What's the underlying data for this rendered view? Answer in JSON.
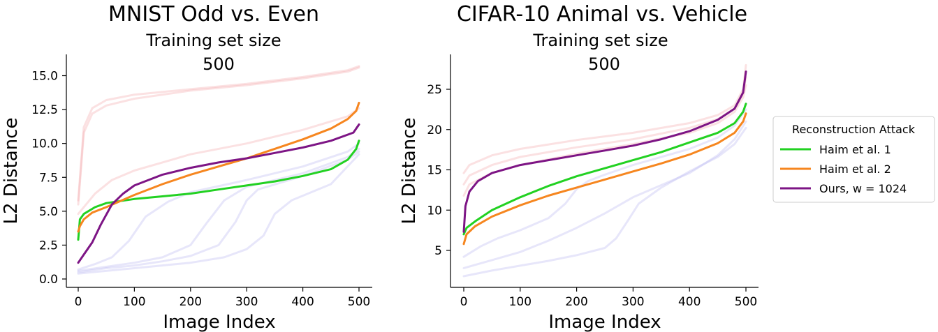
{
  "chart_data": [
    {
      "type": "line",
      "title": "MNIST Odd vs. Even",
      "subtitle": "Training set size",
      "subtitle_value": "500",
      "xlabel": "Image Index",
      "ylabel": "L2 Distance",
      "xlim": [
        0,
        500
      ],
      "ylim": [
        0,
        16
      ],
      "xticks": [
        "0",
        "100",
        "200",
        "300",
        "400",
        "500"
      ],
      "xtick_values": [
        0,
        100,
        200,
        300,
        400,
        500
      ],
      "yticks": [
        "0.0",
        "2.5",
        "5.0",
        "7.5",
        "10.0",
        "12.5",
        "15.0"
      ],
      "ytick_values": [
        0,
        2.5,
        5,
        7.5,
        10,
        12.5,
        15
      ],
      "series": [
        {
          "name": "faded pink 1",
          "color": "#f4a8ac",
          "faded": true,
          "x": [
            0,
            10,
            25,
            50,
            100,
            200,
            300,
            400,
            480,
            500
          ],
          "y": [
            5.5,
            10.8,
            12.2,
            12.8,
            13.3,
            13.9,
            14.3,
            14.8,
            15.3,
            15.6
          ]
        },
        {
          "name": "faded pink 2",
          "color": "#f4a8ac",
          "faded": true,
          "x": [
            0,
            10,
            25,
            50,
            100,
            200,
            300,
            400,
            480,
            500
          ],
          "y": [
            5.8,
            11.2,
            12.6,
            13.2,
            13.6,
            14.0,
            14.4,
            14.9,
            15.4,
            15.7
          ]
        },
        {
          "name": "faded pink 3",
          "color": "#f4a8ac",
          "faded": true,
          "x": [
            0,
            30,
            60,
            100,
            150,
            200,
            300,
            400,
            480,
            500
          ],
          "y": [
            4.8,
            6.3,
            7.3,
            8.0,
            8.6,
            9.2,
            10.0,
            11.0,
            12.0,
            12.6
          ]
        },
        {
          "name": "faded blue 1",
          "color": "#b9b6f2",
          "faded": true,
          "x": [
            0,
            30,
            60,
            90,
            120,
            160,
            200,
            300,
            400,
            480,
            500
          ],
          "y": [
            0.7,
            1.1,
            1.6,
            2.8,
            4.6,
            5.7,
            6.4,
            7.3,
            8.3,
            9.4,
            10.0
          ]
        },
        {
          "name": "faded blue 2",
          "color": "#b9b6f2",
          "faded": true,
          "x": [
            0,
            50,
            100,
            150,
            200,
            230,
            260,
            300,
            400,
            480,
            500
          ],
          "y": [
            0.6,
            0.9,
            1.2,
            1.6,
            2.5,
            4.2,
            5.8,
            6.8,
            7.8,
            9.0,
            9.6
          ]
        },
        {
          "name": "faded blue 3",
          "color": "#b9b6f2",
          "faded": true,
          "x": [
            0,
            50,
            100,
            150,
            200,
            250,
            280,
            300,
            320,
            400,
            480,
            500
          ],
          "y": [
            0.5,
            0.8,
            1.0,
            1.3,
            1.7,
            2.5,
            4.2,
            5.8,
            6.6,
            7.6,
            8.8,
            9.4
          ]
        },
        {
          "name": "faded blue 4",
          "color": "#b9b6f2",
          "faded": true,
          "x": [
            0,
            100,
            200,
            260,
            300,
            330,
            350,
            380,
            450,
            500
          ],
          "y": [
            0.4,
            0.8,
            1.2,
            1.6,
            2.2,
            3.2,
            4.8,
            5.8,
            7.0,
            9.2
          ]
        },
        {
          "name": "Haim et al. 1",
          "color": "#22d122",
          "faded": false,
          "x": [
            0,
            3,
            10,
            30,
            50,
            100,
            150,
            200,
            250,
            300,
            350,
            400,
            450,
            480,
            495,
            500
          ],
          "y": [
            2.9,
            4.4,
            4.8,
            5.3,
            5.6,
            5.9,
            6.1,
            6.3,
            6.6,
            6.9,
            7.2,
            7.6,
            8.1,
            8.8,
            9.6,
            10.2
          ]
        },
        {
          "name": "Haim et al. 2",
          "color": "#f6861f",
          "faded": false,
          "x": [
            0,
            3,
            10,
            25,
            50,
            100,
            150,
            200,
            250,
            300,
            350,
            400,
            450,
            480,
            495,
            500
          ],
          "y": [
            3.5,
            3.9,
            4.4,
            4.9,
            5.3,
            6.2,
            7.0,
            7.7,
            8.3,
            8.9,
            9.6,
            10.3,
            11.1,
            11.8,
            12.4,
            13.0
          ]
        },
        {
          "name": "Ours, w = 1024",
          "color": "#7d1585",
          "faded": false,
          "x": [
            0,
            10,
            25,
            40,
            60,
            80,
            100,
            150,
            200,
            250,
            300,
            350,
            400,
            450,
            490,
            500
          ],
          "y": [
            1.2,
            1.8,
            2.7,
            4.0,
            5.5,
            6.3,
            6.9,
            7.7,
            8.2,
            8.6,
            8.9,
            9.3,
            9.7,
            10.2,
            10.8,
            11.4
          ]
        }
      ]
    },
    {
      "type": "line",
      "title": "CIFAR-10 Animal vs. Vehicle",
      "subtitle": "Training set size",
      "subtitle_value": "500",
      "xlabel": "Image Index",
      "ylabel": "L2 Distance",
      "xlim": [
        0,
        500
      ],
      "ylim": [
        1,
        28
      ],
      "xticks": [
        "0",
        "100",
        "200",
        "300",
        "400",
        "500"
      ],
      "xtick_values": [
        0,
        100,
        200,
        300,
        400,
        500
      ],
      "yticks": [
        "5",
        "10",
        "15",
        "20",
        "25"
      ],
      "ytick_values": [
        5,
        10,
        15,
        20,
        25
      ],
      "series": [
        {
          "name": "faded pink 1",
          "color": "#f4a8ac",
          "faded": true,
          "x": [
            0,
            10,
            50,
            100,
            200,
            300,
            400,
            450,
            480,
            495,
            500
          ],
          "y": [
            14.6,
            15.6,
            16.8,
            17.6,
            18.7,
            19.6,
            20.8,
            21.8,
            23.0,
            25.0,
            28.0
          ]
        },
        {
          "name": "faded pink 2",
          "color": "#f4a8ac",
          "faded": true,
          "x": [
            0,
            10,
            50,
            100,
            200,
            300,
            400,
            450,
            480,
            495,
            500
          ],
          "y": [
            13.2,
            14.3,
            15.6,
            16.6,
            17.8,
            18.8,
            20.2,
            21.3,
            22.6,
            24.5,
            26.5
          ]
        },
        {
          "name": "faded pink 3",
          "color": "#f4a8ac",
          "faded": true,
          "x": [
            0,
            10,
            50,
            100,
            200,
            300,
            400,
            450,
            480,
            495,
            500
          ],
          "y": [
            11.8,
            13.2,
            14.6,
            15.6,
            17.0,
            18.2,
            19.6,
            20.8,
            22.2,
            24.0,
            25.5
          ]
        },
        {
          "name": "faded blue 1",
          "color": "#b9b6f2",
          "faded": true,
          "x": [
            0,
            30,
            60,
            100,
            150,
            180,
            200,
            220,
            250,
            300,
            400,
            450,
            480,
            500
          ],
          "y": [
            4.2,
            5.5,
            6.5,
            7.5,
            9.0,
            10.8,
            12.6,
            13.6,
            14.4,
            15.6,
            17.6,
            19.0,
            20.5,
            22.5
          ]
        },
        {
          "name": "faded blue 2",
          "color": "#b9b6f2",
          "faded": true,
          "x": [
            0,
            50,
            100,
            150,
            200,
            250,
            300,
            400,
            450,
            480,
            500
          ],
          "y": [
            2.8,
            3.8,
            4.8,
            6.2,
            7.8,
            9.6,
            11.6,
            14.6,
            16.8,
            18.8,
            21.0
          ]
        },
        {
          "name": "faded blue 3",
          "color": "#b9b6f2",
          "faded": true,
          "x": [
            0,
            50,
            100,
            150,
            200,
            250,
            270,
            290,
            310,
            350,
            400,
            450,
            480,
            500
          ],
          "y": [
            1.8,
            2.5,
            3.1,
            3.7,
            4.4,
            5.3,
            6.5,
            8.6,
            10.8,
            12.8,
            14.8,
            16.6,
            18.2,
            20.2
          ]
        }
      ],
      "series_main": [
        {
          "name": "Haim et al. 1",
          "color": "#22d122",
          "faded": false,
          "x": [
            0,
            5,
            20,
            50,
            100,
            150,
            200,
            250,
            300,
            350,
            400,
            450,
            480,
            495,
            500
          ],
          "y": [
            7.0,
            7.8,
            8.6,
            10.0,
            11.6,
            13.0,
            14.2,
            15.2,
            16.2,
            17.2,
            18.4,
            19.6,
            20.8,
            22.2,
            23.2
          ]
        },
        {
          "name": "Haim et al. 2",
          "color": "#f6861f",
          "faded": false,
          "x": [
            0,
            5,
            20,
            50,
            100,
            150,
            200,
            250,
            300,
            350,
            400,
            450,
            480,
            495,
            500
          ],
          "y": [
            5.8,
            7.0,
            8.0,
            9.2,
            10.6,
            11.8,
            12.8,
            13.8,
            14.8,
            15.8,
            16.9,
            18.3,
            19.6,
            21.0,
            22.0
          ]
        },
        {
          "name": "Ours, w = 1024",
          "color": "#7d1585",
          "faded": false,
          "x": [
            0,
            3,
            10,
            25,
            50,
            100,
            150,
            200,
            250,
            300,
            350,
            400,
            450,
            480,
            495,
            500
          ],
          "y": [
            7.3,
            10.5,
            12.3,
            13.6,
            14.6,
            15.6,
            16.2,
            16.8,
            17.4,
            18.0,
            18.8,
            19.8,
            21.2,
            22.6,
            24.6,
            27.2
          ]
        }
      ]
    }
  ],
  "legend": {
    "title": "Reconstruction Attack",
    "items": [
      {
        "label": "Haim et al. 1",
        "color": "#22d122"
      },
      {
        "label": "Haim et al. 2",
        "color": "#f6861f"
      },
      {
        "label": "Ours, w = 1024",
        "color": "#7d1585"
      }
    ]
  }
}
